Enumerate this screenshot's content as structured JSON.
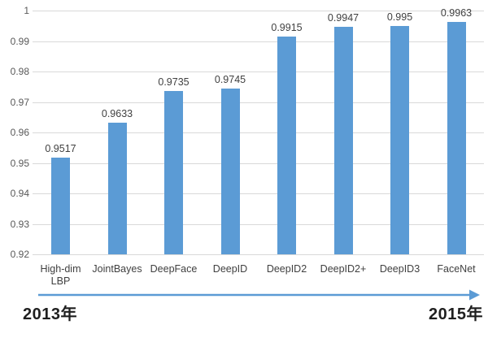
{
  "chart_data": {
    "type": "bar",
    "title": "",
    "xlabel": "",
    "ylabel": "",
    "categories": [
      "High-dim LBP",
      "JointBayes",
      "DeepFace",
      "DeepID",
      "DeepID2",
      "DeepID2+",
      "DeepID3",
      "FaceNet"
    ],
    "values": [
      0.9517,
      0.9633,
      0.9735,
      0.9745,
      0.9915,
      0.9947,
      0.995,
      0.9963
    ],
    "value_labels": [
      "0.9517",
      "0.9633",
      "0.9735",
      "0.9745",
      "0.9915",
      "0.9947",
      "0.995",
      "0.9963"
    ],
    "ylim": [
      0.92,
      1.0
    ],
    "ytick_labels": [
      "1",
      "0.99",
      "0.98",
      "0.97",
      "0.96",
      "0.95",
      "0.94",
      "0.93",
      "0.92"
    ],
    "grid": true,
    "legend": false,
    "bar_color": "#5b9bd5"
  },
  "timeline": {
    "start_label": "2013年",
    "end_label": "2015年",
    "arrow_color": "#5b9bd5"
  },
  "colors": {
    "background": "#ffffff",
    "gridline": "#d9d9d9",
    "axis_text": "#595959",
    "label_text": "#404040",
    "year_text": "#1f1f1f"
  }
}
